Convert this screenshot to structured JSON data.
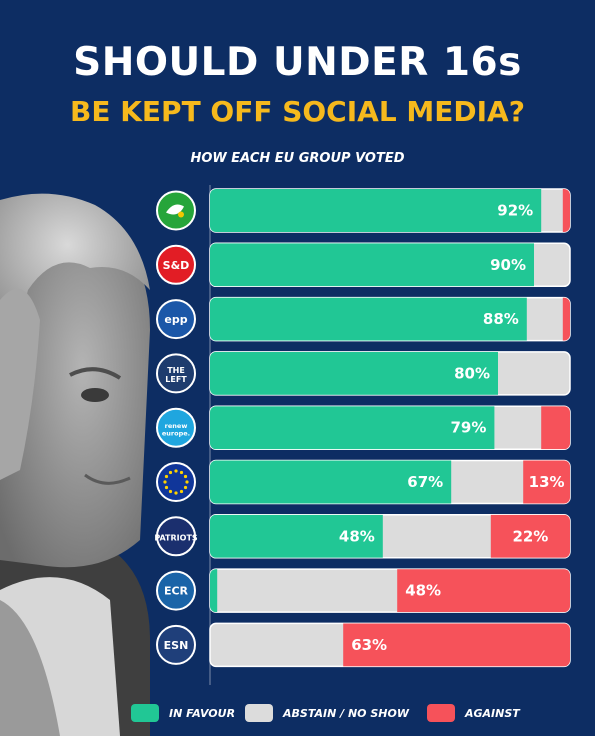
{
  "title": {
    "line1": "SHOULD UNDER 16s",
    "line2": "BE KEPT OFF SOCIAL MEDIA?",
    "subtitle": "HOW EACH EU GROUP VOTED"
  },
  "colors": {
    "background": "#0d2d63",
    "in_favour": "#21c795",
    "abstain": "#dcdcdc",
    "against": "#f6525a",
    "title_accent": "#f6b91d"
  },
  "chart_data": {
    "type": "bar",
    "orientation": "horizontal-stacked-100",
    "title": "SHOULD UNDER 16s BE KEPT OFF SOCIAL MEDIA?",
    "subtitle": "HOW EACH EU GROUP VOTED",
    "xlim": [
      0,
      100
    ],
    "categories": [
      "Greens/EFA",
      "S&D",
      "EPP",
      "The Left",
      "Renew Europe",
      "Non-attached",
      "Patriots",
      "ECR",
      "ESN"
    ],
    "series": [
      {
        "name": "IN FAVOUR",
        "values": [
          92,
          90,
          88,
          80,
          79,
          67,
          48,
          2,
          0
        ]
      },
      {
        "name": "ABSTAIN / NO SHOW",
        "values": [
          6,
          10,
          10,
          20,
          13,
          20,
          30,
          50,
          37
        ]
      },
      {
        "name": "AGAINST",
        "values": [
          2,
          0,
          2,
          0,
          8,
          13,
          22,
          48,
          63
        ]
      }
    ],
    "data_labels": [
      {
        "in_favour": "92%",
        "against": ""
      },
      {
        "in_favour": "90%",
        "against": ""
      },
      {
        "in_favour": "88%",
        "against": ""
      },
      {
        "in_favour": "80%",
        "against": ""
      },
      {
        "in_favour": "79%",
        "against": ""
      },
      {
        "in_favour": "67%",
        "against": "13%"
      },
      {
        "in_favour": "48%",
        "against": "22%"
      },
      {
        "in_favour": "",
        "against": "48%"
      },
      {
        "in_favour": "",
        "against": "63%"
      }
    ],
    "legend_position": "bottom"
  },
  "logos": [
    {
      "icon": "greens-efa-icon",
      "color": "#26a53a",
      "text": ""
    },
    {
      "icon": "sd-icon",
      "color": "#e21d25",
      "text": "S&D"
    },
    {
      "icon": "epp-icon",
      "color": "#1b57a8",
      "text": "epp"
    },
    {
      "icon": "the-left-icon",
      "color": "#1e3c6e",
      "text": "THE LEFT"
    },
    {
      "icon": "renew-europe-icon",
      "color": "#1fa6df",
      "text": "renew europe."
    },
    {
      "icon": "non-attached-eu-flag-icon",
      "color": "#10369a",
      "text": ""
    },
    {
      "icon": "patriots-icon",
      "color": "#1b2f6e",
      "text": "PATRIOTS"
    },
    {
      "icon": "ecr-icon",
      "color": "#1a64a8",
      "text": "ECR"
    },
    {
      "icon": "esn-icon",
      "color": "#1f3f7a",
      "text": "ESN"
    }
  ],
  "legend": [
    {
      "label": "IN FAVOUR",
      "color": "#21c795"
    },
    {
      "label": "ABSTAIN / NO SHOW",
      "color": "#dcdcdc"
    },
    {
      "label": "AGAINST",
      "color": "#f6525a"
    }
  ]
}
